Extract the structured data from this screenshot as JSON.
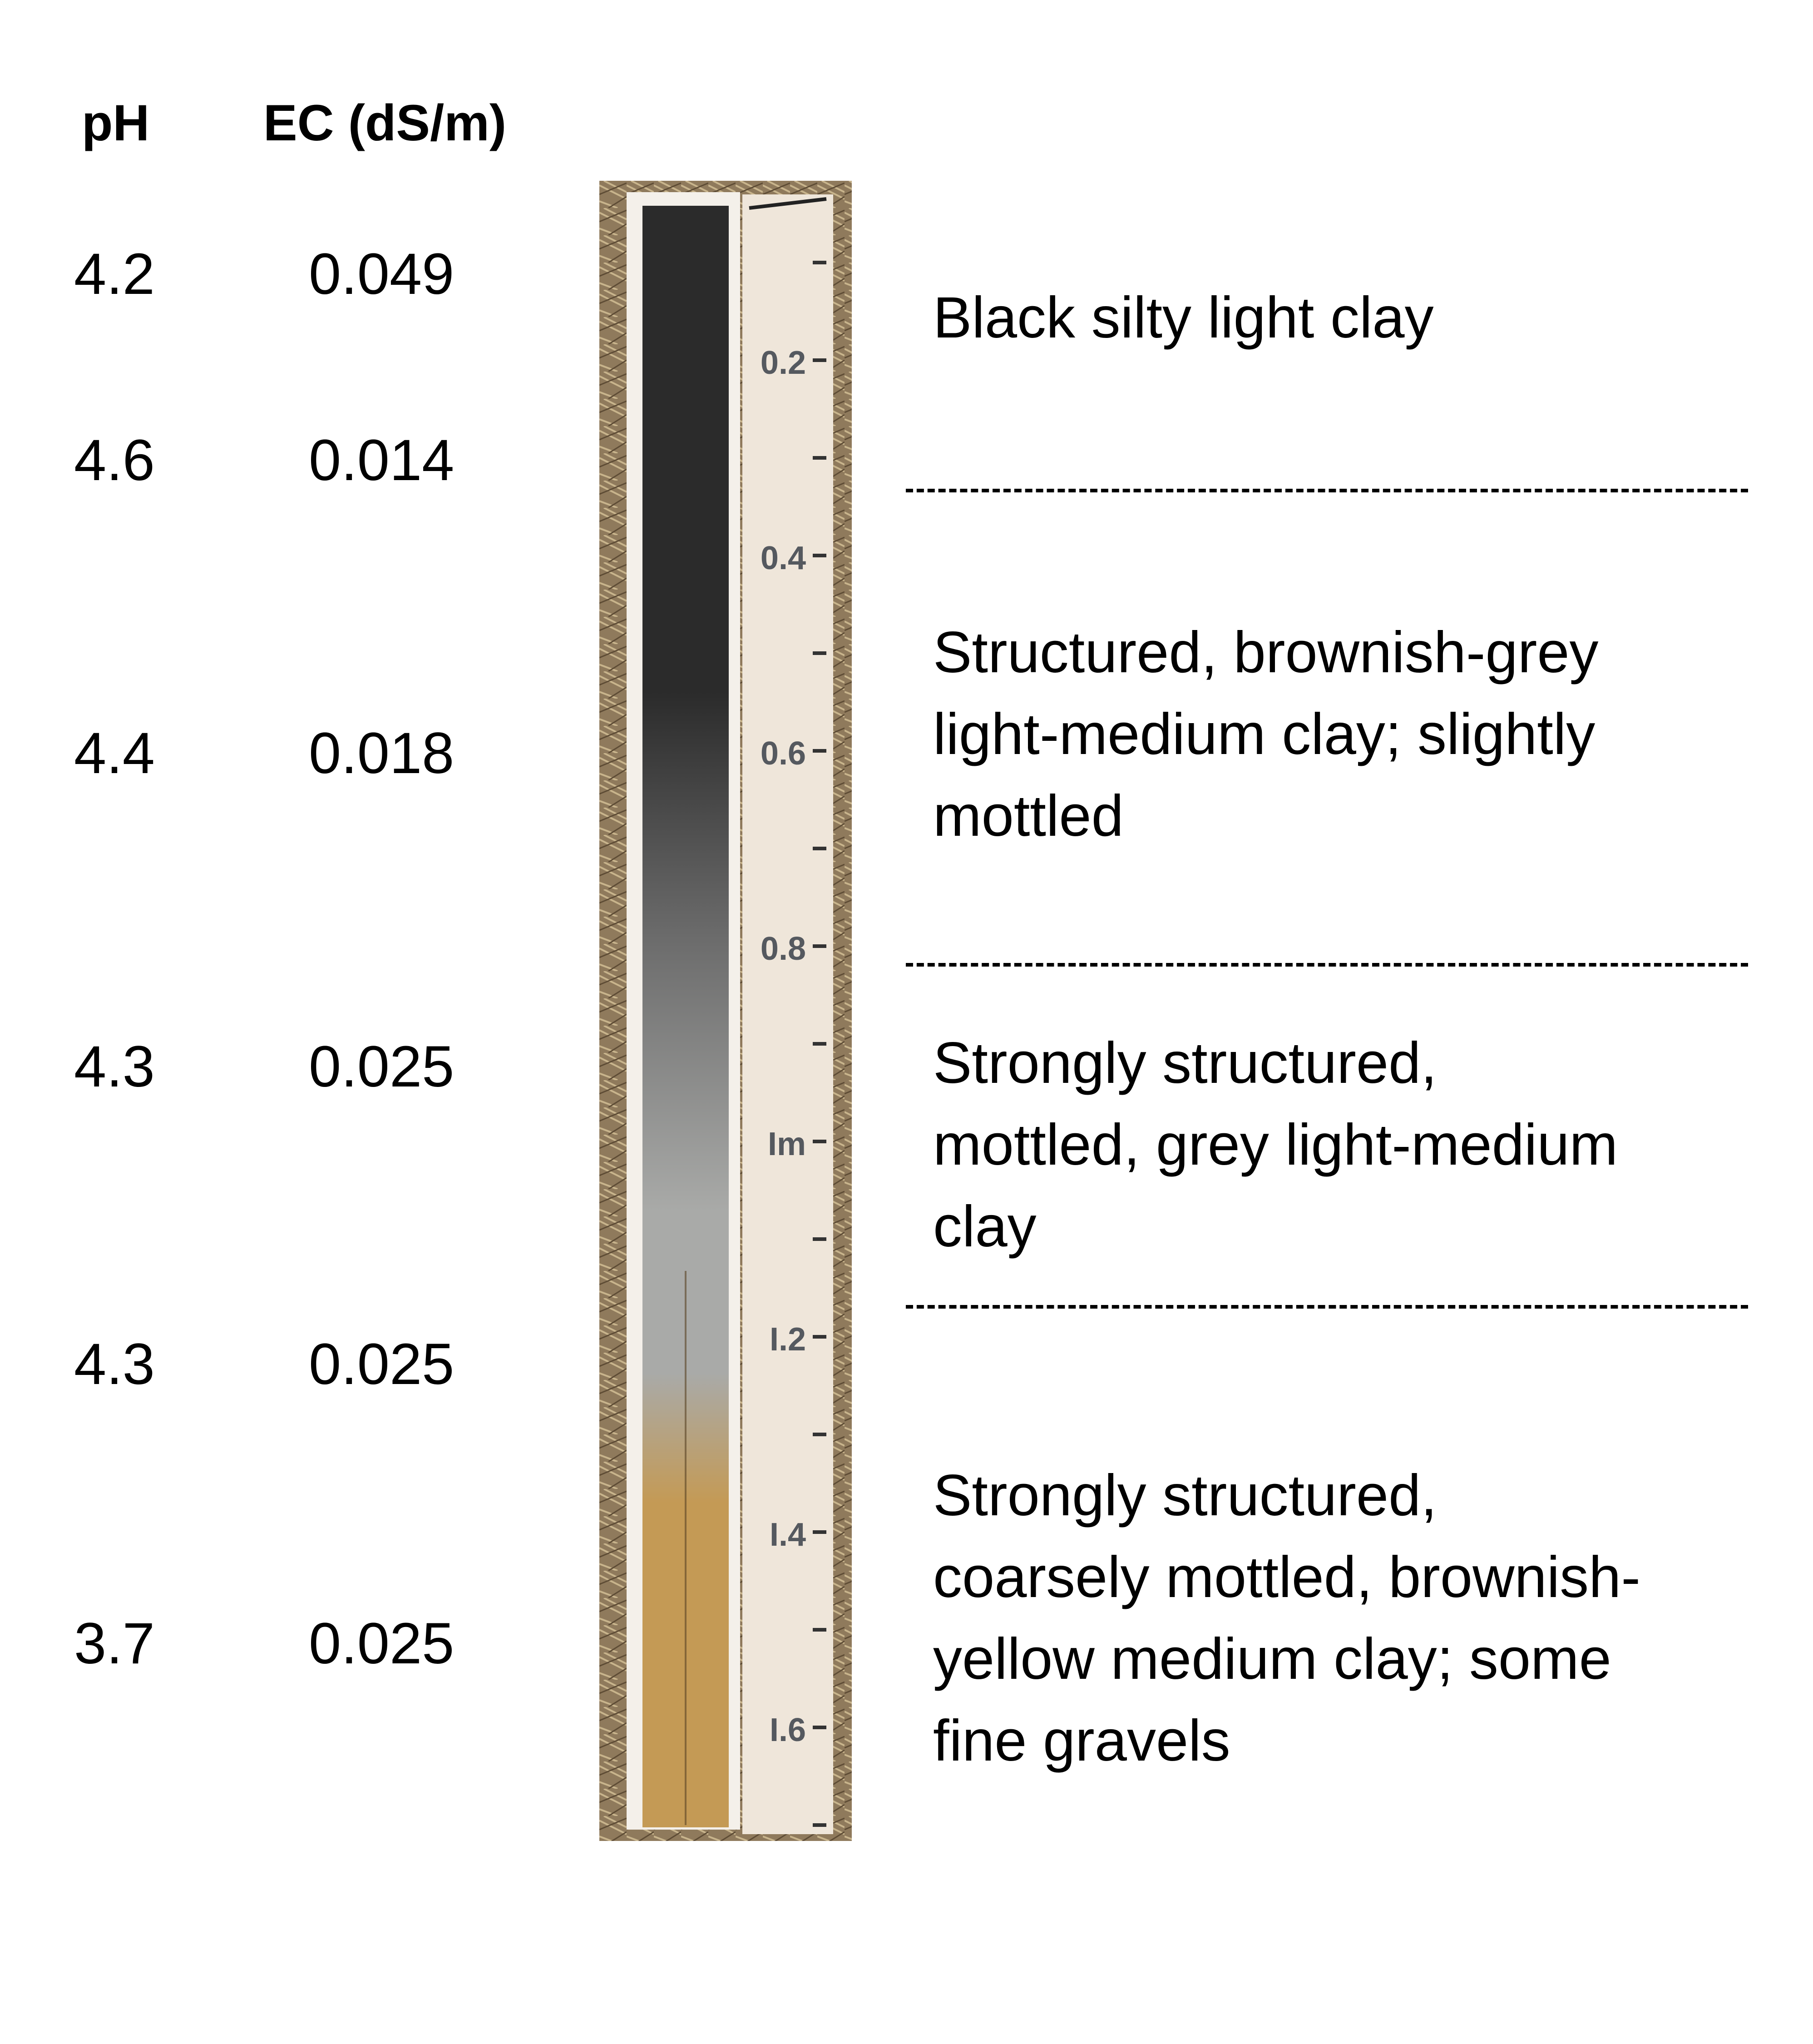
{
  "headers": {
    "ph": "pH",
    "ec": "EC (dS/m)"
  },
  "measurements": [
    {
      "ph": "4.2",
      "ec": "0.049"
    },
    {
      "ph": "4.6",
      "ec": "0.014"
    },
    {
      "ph": "4.4",
      "ec": "0.018"
    },
    {
      "ph": "4.3",
      "ec": "0.025"
    },
    {
      "ph": "4.3",
      "ec": "0.025"
    },
    {
      "ph": "3.7",
      "ec": "0.025"
    }
  ],
  "scale_labels": [
    "0.2",
    "0.4",
    "0.6",
    "0.8",
    "Im",
    "I.2",
    "I.4",
    "I.6"
  ],
  "horizons": [
    {
      "lines": [
        "Black silty light clay"
      ]
    },
    {
      "lines": [
        "Structured, brownish-grey",
        "light-medium clay; slightly",
        "mottled"
      ]
    },
    {
      "lines": [
        "Strongly structured,",
        "mottled, grey light-medium",
        "clay"
      ]
    },
    {
      "lines": [
        "Strongly structured,",
        "coarsely mottled, brownish-",
        "yellow medium clay; some",
        "fine gravels"
      ]
    }
  ],
  "colors": {
    "topsoil": "#2b2b2b",
    "subsoil_grey": "#6b6b6b",
    "grey_clay": "#a9aaa8",
    "yellow_clay": "#c49a55",
    "ruler": "#efe6da",
    "frame": "#f4f0ea",
    "background_straw": "#8f7a5c"
  }
}
